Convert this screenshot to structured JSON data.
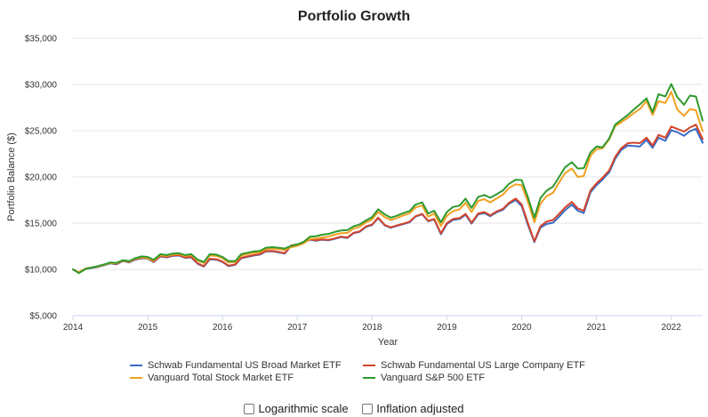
{
  "chart_data": {
    "type": "line",
    "title": "Portfolio Growth",
    "xlabel": "Year",
    "ylabel": "Portfolio Balance ($)",
    "ylim": [
      5000,
      35000
    ],
    "xlim": [
      2014,
      2022.42
    ],
    "yticks": [
      5000,
      10000,
      15000,
      20000,
      25000,
      30000,
      35000
    ],
    "ytick_labels": [
      "$5,000",
      "$10,000",
      "$15,000",
      "$20,000",
      "$25,000",
      "$30,000",
      "$35,000"
    ],
    "xticks": [
      2014,
      2015,
      2016,
      2017,
      2018,
      2019,
      2020,
      2021,
      2022
    ],
    "xtick_labels": [
      "2014",
      "2015",
      "2016",
      "2017",
      "2018",
      "2019",
      "2020",
      "2021",
      "2022"
    ],
    "grid": true,
    "legend": "bottom",
    "x": [
      2014.0,
      2014.08,
      2014.17,
      2014.25,
      2014.33,
      2014.42,
      2014.5,
      2014.58,
      2014.67,
      2014.75,
      2014.83,
      2014.92,
      2015.0,
      2015.08,
      2015.17,
      2015.25,
      2015.33,
      2015.42,
      2015.5,
      2015.58,
      2015.67,
      2015.75,
      2015.83,
      2015.92,
      2016.0,
      2016.08,
      2016.17,
      2016.25,
      2016.33,
      2016.42,
      2016.5,
      2016.58,
      2016.67,
      2016.75,
      2016.83,
      2016.92,
      2017.0,
      2017.08,
      2017.17,
      2017.25,
      2017.33,
      2017.42,
      2017.5,
      2017.58,
      2017.67,
      2017.75,
      2017.83,
      2017.92,
      2018.0,
      2018.08,
      2018.17,
      2018.25,
      2018.33,
      2018.42,
      2018.5,
      2018.58,
      2018.67,
      2018.75,
      2018.83,
      2018.92,
      2019.0,
      2019.08,
      2019.17,
      2019.25,
      2019.33,
      2019.42,
      2019.5,
      2019.58,
      2019.67,
      2019.75,
      2019.83,
      2019.92,
      2020.0,
      2020.08,
      2020.17,
      2020.25,
      2020.33,
      2020.42,
      2020.5,
      2020.58,
      2020.67,
      2020.75,
      2020.83,
      2020.92,
      2021.0,
      2021.08,
      2021.17,
      2021.25,
      2021.33,
      2021.42,
      2021.5,
      2021.58,
      2021.67,
      2021.75,
      2021.83,
      2021.92,
      2022.0,
      2022.08,
      2022.17,
      2022.25,
      2022.33,
      2022.42
    ],
    "series": [
      {
        "name": "Schwab Fundamental US Broad Market ETF",
        "color": "#3a6bc6",
        "values": [
          10000,
          9650,
          10050,
          10150,
          10250,
          10450,
          10650,
          10550,
          10900,
          10750,
          11050,
          11200,
          11150,
          10800,
          11400,
          11300,
          11450,
          11500,
          11250,
          11300,
          10600,
          10300,
          11100,
          11050,
          10800,
          10350,
          10500,
          11200,
          11350,
          11500,
          11600,
          11950,
          11950,
          11850,
          11700,
          12550,
          12650,
          12900,
          13200,
          13100,
          13200,
          13150,
          13300,
          13500,
          13400,
          13900,
          14050,
          14600,
          14800,
          15550,
          14750,
          14500,
          14700,
          14900,
          15100,
          15700,
          15950,
          15200,
          15400,
          13800,
          14900,
          15350,
          15450,
          15900,
          14950,
          15950,
          16100,
          15750,
          16200,
          16450,
          17100,
          17500,
          16850,
          14900,
          12950,
          14500,
          14900,
          15050,
          15700,
          16400,
          17000,
          16350,
          16100,
          18350,
          19100,
          19700,
          20500,
          21950,
          22900,
          23400,
          23350,
          23300,
          24000,
          23150,
          24250,
          23900,
          25050,
          24850,
          24450,
          24950,
          25200,
          23700
        ]
      },
      {
        "name": "Schwab Fundamental US Large Company ETF",
        "color": "#d4442b",
        "values": [
          10000,
          9700,
          10100,
          10200,
          10300,
          10500,
          10700,
          10600,
          10950,
          10800,
          11100,
          11250,
          11200,
          10850,
          11450,
          11350,
          11500,
          11550,
          11300,
          11350,
          10650,
          10350,
          11150,
          11100,
          10850,
          10400,
          10550,
          11250,
          11400,
          11550,
          11650,
          12000,
          12000,
          11900,
          11750,
          12600,
          12700,
          12950,
          13250,
          13150,
          13250,
          13200,
          13350,
          13550,
          13450,
          13950,
          14100,
          14650,
          14850,
          15600,
          14800,
          14550,
          14750,
          14950,
          15150,
          15750,
          16000,
          15250,
          15450,
          13900,
          15000,
          15450,
          15550,
          16000,
          15050,
          16050,
          16200,
          15850,
          16300,
          16550,
          17200,
          17650,
          17050,
          15100,
          13050,
          14650,
          15150,
          15350,
          16000,
          16700,
          17300,
          16600,
          16350,
          18550,
          19300,
          19900,
          20700,
          22150,
          23100,
          23650,
          23700,
          23650,
          24250,
          23400,
          24550,
          24250,
          25450,
          25200,
          24900,
          25350,
          25650,
          24100
        ]
      },
      {
        "name": "Vanguard Total Stock Market ETF",
        "color": "#f0a020",
        "values": [
          10000,
          9700,
          10100,
          10200,
          10300,
          10500,
          10700,
          10650,
          10950,
          10850,
          11150,
          11300,
          11200,
          10950,
          11550,
          11450,
          11600,
          11650,
          11450,
          11550,
          10950,
          10700,
          11500,
          11450,
          11200,
          10750,
          10800,
          11500,
          11650,
          11800,
          11850,
          12200,
          12250,
          12200,
          12100,
          12400,
          12550,
          12800,
          13300,
          13350,
          13450,
          13550,
          13750,
          13900,
          13950,
          14400,
          14600,
          15100,
          15400,
          16200,
          15650,
          15350,
          15550,
          15850,
          16050,
          16700,
          16900,
          15700,
          16050,
          14700,
          15800,
          16300,
          16500,
          17200,
          16200,
          17400,
          17600,
          17250,
          17700,
          18100,
          18800,
          19200,
          19100,
          17400,
          15100,
          17100,
          17900,
          18300,
          19400,
          20400,
          20900,
          20000,
          20100,
          22300,
          23000,
          23100,
          24050,
          25500,
          25900,
          26400,
          26900,
          27350,
          28200,
          26700,
          28200,
          28000,
          29200,
          27300,
          26600,
          27350,
          27200,
          24950
        ]
      },
      {
        "name": "Vanguard S&P 500 ETF",
        "color": "#2e9a2e",
        "values": [
          10000,
          9600,
          10050,
          10200,
          10350,
          10550,
          10750,
          10700,
          11000,
          10900,
          11200,
          11400,
          11350,
          11050,
          11650,
          11550,
          11700,
          11750,
          11550,
          11650,
          11050,
          10800,
          11650,
          11600,
          11350,
          10900,
          10900,
          11650,
          11800,
          11950,
          12000,
          12350,
          12400,
          12350,
          12250,
          12550,
          12700,
          12950,
          13550,
          13600,
          13750,
          13850,
          14050,
          14200,
          14250,
          14650,
          14850,
          15300,
          15650,
          16500,
          15950,
          15600,
          15800,
          16100,
          16300,
          17000,
          17250,
          16050,
          16350,
          15100,
          16200,
          16750,
          16900,
          17650,
          16650,
          17850,
          18050,
          17750,
          18150,
          18550,
          19250,
          19700,
          19650,
          17900,
          15600,
          17700,
          18500,
          18950,
          20000,
          21050,
          21600,
          20900,
          20950,
          22650,
          23300,
          23200,
          24150,
          25650,
          26150,
          26700,
          27300,
          27850,
          28500,
          27000,
          28950,
          28700,
          30050,
          28650,
          27800,
          28800,
          28700,
          26100
        ]
      }
    ]
  },
  "options": {
    "log_label": "Logarithmic scale",
    "inflation_label": "Inflation adjusted",
    "log_checked": false,
    "inflation_checked": false
  }
}
